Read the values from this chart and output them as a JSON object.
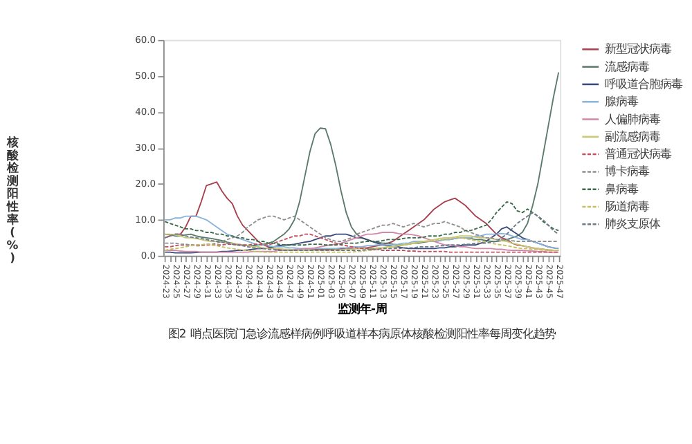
{
  "chart_data": {
    "type": "line",
    "xlabel": "监测年-周",
    "ylabel": "核酸检测阳性率(%)",
    "annotations": [
      "图2  哨点医院门急诊流感样病例呼吸道样本病原体核酸检测阳性率每周变化趋势"
    ],
    "ylim": [
      0,
      60
    ],
    "yticks": [
      {
        "value": 0,
        "label": "0.0"
      },
      {
        "value": 10,
        "label": "10.0"
      },
      {
        "value": 20,
        "label": "20.0"
      },
      {
        "value": 30,
        "label": "30.0"
      },
      {
        "value": 40,
        "label": "40.0"
      },
      {
        "value": 50,
        "label": "50.0"
      },
      {
        "value": 60,
        "label": "60.0"
      }
    ],
    "grid": false,
    "legend": "right",
    "categories": [
      "2024-23",
      null,
      "2024-25",
      null,
      "2024-27",
      null,
      "2024-29",
      null,
      "2024-31",
      null,
      "2024-33",
      null,
      "2024-35",
      null,
      "2024-37",
      null,
      "2024-39",
      null,
      "2024-41",
      null,
      "2024-43",
      null,
      "2024-45",
      null,
      "2024-47",
      null,
      "2024-49",
      null,
      "2024-51",
      null,
      "2025-01",
      null,
      "2025-03",
      null,
      "2025-05",
      null,
      "2025-07",
      null,
      "2025-09",
      null,
      "2025-11",
      null,
      "2025-13",
      null,
      "2025-15",
      null,
      "2025-17",
      null,
      "2025-19",
      null,
      "2025-21",
      null,
      "2025-23",
      null,
      "2025-25",
      null,
      "2025-27",
      null,
      "2025-29",
      null,
      "2025-31",
      null,
      "2025-33",
      null,
      "2025-35",
      null,
      "2025-37",
      null,
      "2025-39",
      null,
      "2025-41",
      null,
      "2025-43",
      null,
      "2025-45",
      null,
      "2025-47"
    ],
    "series": [
      {
        "name": "新型冠状病毒",
        "color": "#a8404e",
        "line_style": "solid",
        "values": [
          5,
          5.5,
          6,
          6,
          8,
          11,
          11,
          15,
          19.5,
          20,
          20.5,
          18,
          16,
          14.5,
          11,
          8.5,
          7,
          5.5,
          4,
          3,
          2.5,
          2,
          1.8,
          1.6,
          1.5,
          1.5,
          1.5,
          1.6,
          1.6,
          1.7,
          1.8,
          1.8,
          1.8,
          1.8,
          1.9,
          2,
          2,
          2,
          2.2,
          2.2,
          2.5,
          2.8,
          3,
          3.5,
          4,
          5,
          6,
          7,
          8,
          9,
          10,
          11.5,
          13,
          14,
          15,
          15.5,
          16,
          15,
          14,
          12.5,
          11,
          10,
          9,
          7.5,
          6,
          5,
          4.5,
          3.5,
          3,
          2.8,
          2.5,
          2.2,
          2,
          1.8,
          1.6,
          1.5,
          1.5
        ]
      },
      {
        "name": "流感病毒",
        "color": "#5a7a6a",
        "line_style": "solid",
        "values": [
          6,
          5.8,
          5.5,
          5.5,
          5.8,
          6,
          5.5,
          5.2,
          5,
          4.8,
          4.5,
          4.2,
          3.8,
          3.5,
          3.2,
          3,
          2.8,
          2.8,
          3,
          3.2,
          3.5,
          4,
          5,
          6,
          7.5,
          10,
          15,
          22,
          29,
          34,
          35.5,
          35.3,
          31,
          25,
          18,
          12,
          8,
          6,
          5,
          4.5,
          4,
          3.8,
          3.5,
          3.5,
          3.2,
          3,
          3,
          3.2,
          3.5,
          3.5,
          3.8,
          4,
          4,
          4.2,
          4.5,
          4.5,
          4.8,
          5,
          5,
          4.8,
          4.5,
          4.5,
          4.2,
          4,
          4,
          4.2,
          4.5,
          5,
          5.5,
          6.5,
          9,
          14,
          20,
          28,
          36,
          44,
          51
        ]
      },
      {
        "name": "呼吸道合胞病毒",
        "color": "#3a4a7a",
        "line_style": "solid",
        "values": [
          1,
          1,
          0.8,
          0.8,
          0.8,
          0.8,
          0.9,
          1,
          1,
          1,
          1,
          1.2,
          1.2,
          1.3,
          1.5,
          1.5,
          1.6,
          1.8,
          2,
          2,
          2.2,
          2.5,
          2.8,
          3,
          3,
          3.2,
          3.5,
          3.8,
          4,
          4.5,
          5,
          5.5,
          5.5,
          6,
          6,
          6,
          5.5,
          5,
          5,
          4.5,
          4,
          3.5,
          3,
          2.8,
          2.5,
          2.5,
          2.2,
          2,
          2,
          2,
          2,
          2,
          2,
          2.2,
          2.2,
          2.5,
          2.5,
          2.8,
          3,
          3,
          3,
          3.5,
          4,
          5,
          6,
          7.5,
          8,
          7,
          6,
          5,
          4.5,
          4,
          3.5,
          3,
          2.5,
          2.2,
          2
        ]
      },
      {
        "name": "腺病毒",
        "color": "#8ab4d8",
        "line_style": "solid",
        "values": [
          10,
          10,
          10.5,
          10.5,
          11,
          11,
          11,
          10.5,
          10,
          9,
          8,
          7,
          6,
          5.5,
          5,
          4.5,
          4,
          3.5,
          3,
          3,
          2.8,
          2.5,
          2.5,
          2.5,
          2.2,
          2.2,
          2,
          2,
          2,
          2,
          2,
          2,
          2,
          2,
          2.2,
          2.2,
          2.5,
          2.5,
          2.5,
          2.8,
          2.8,
          3,
          3,
          3,
          3,
          3.2,
          3.5,
          3.5,
          4,
          4,
          4,
          4,
          4,
          4.2,
          4.5,
          4.5,
          4.8,
          5,
          5,
          5,
          5.5,
          5.5,
          6,
          6,
          6,
          6.2,
          6,
          5.5,
          5,
          4.5,
          4.5,
          4,
          3.5,
          3,
          2.5,
          2.2,
          2
        ]
      },
      {
        "name": "人偏肺病毒",
        "color": "#d08aa8",
        "line_style": "solid",
        "values": [
          1.5,
          1.5,
          1.5,
          1.3,
          1.2,
          1.2,
          1.2,
          1,
          1,
          1,
          1,
          1,
          1,
          1,
          1,
          1,
          1,
          1.2,
          1.2,
          1.2,
          1.2,
          1.2,
          1.5,
          1.5,
          1.5,
          1.8,
          1.8,
          2,
          2,
          2.2,
          2.5,
          2.8,
          3,
          3.2,
          3.5,
          4,
          4.5,
          5,
          5.5,
          6,
          6,
          6.2,
          6.5,
          6.5,
          6.5,
          6.2,
          6,
          6,
          5.8,
          5.5,
          5,
          4.5,
          4,
          3.5,
          3,
          3,
          2.8,
          2.5,
          2.5,
          2.2,
          2,
          2,
          2,
          2,
          1.8,
          1.8,
          1.6,
          1.5,
          1.5,
          1.5,
          1.4,
          1.3,
          1.2,
          1.2,
          1,
          1,
          1
        ]
      },
      {
        "name": "副流感病毒",
        "color": "#c8c878",
        "line_style": "solid",
        "values": [
          6,
          6,
          5.8,
          5.5,
          5,
          5,
          4.8,
          4.5,
          4.2,
          4,
          4,
          3.8,
          3.5,
          3.5,
          3.2,
          3,
          2.8,
          2.5,
          2.5,
          2.2,
          2,
          2,
          2,
          1.8,
          1.8,
          1.5,
          1.5,
          1.5,
          1.5,
          1.5,
          1.5,
          1.5,
          1.5,
          1.6,
          1.6,
          1.8,
          1.8,
          2,
          2,
          2,
          2,
          2.2,
          2.2,
          2.5,
          2.5,
          2.8,
          3,
          3.2,
          3.5,
          3.8,
          4,
          4.2,
          4.5,
          4.8,
          5,
          5,
          5.2,
          5.5,
          5.5,
          5.5,
          5.2,
          5,
          5,
          4.8,
          4.5,
          4.2,
          4,
          3.5,
          3.2,
          2.8,
          2.5,
          2.2,
          2,
          1.8,
          1.6,
          1.5,
          1.5
        ]
      },
      {
        "name": "普通冠状病毒",
        "color": "#c05060",
        "line_style": "dashed",
        "values": [
          2.5,
          2.5,
          2.8,
          3,
          3,
          3,
          2.8,
          2.8,
          3,
          3,
          3,
          3,
          3.2,
          3.2,
          3,
          3,
          3,
          3.2,
          3.2,
          3,
          3,
          3.5,
          4,
          4.5,
          5,
          5.5,
          5.5,
          6,
          6,
          5.5,
          5,
          4.5,
          4,
          3.5,
          3,
          2.8,
          2.5,
          2.2,
          2,
          2,
          1.8,
          1.8,
          1.5,
          1.5,
          1.5,
          1.5,
          1.5,
          1.3,
          1.3,
          1.2,
          1.2,
          1.2,
          1.2,
          1.2,
          1.2,
          1,
          1,
          1,
          1,
          1,
          1,
          1,
          1,
          1,
          1,
          1,
          1,
          1,
          1,
          1,
          1,
          1,
          1,
          1,
          1,
          1,
          1
        ]
      },
      {
        "name": "博卡病毒",
        "color": "#909090",
        "line_style": "dashed",
        "values": [
          3.5,
          3.5,
          3.5,
          3.2,
          3.2,
          3,
          3,
          3,
          3.2,
          3.2,
          3.5,
          4,
          4.5,
          5,
          5.5,
          6.5,
          8,
          9,
          10,
          10.5,
          11,
          11,
          10.5,
          10,
          10.5,
          11,
          10,
          9,
          8,
          7,
          6,
          5,
          4.5,
          4,
          4,
          4.5,
          5,
          6,
          6.5,
          7,
          7.5,
          8,
          8.5,
          8.5,
          9,
          8.5,
          8,
          8.5,
          9,
          8.5,
          8,
          8.5,
          9,
          9,
          9.5,
          9,
          8.5,
          8,
          7,
          6.5,
          6,
          5.5,
          5,
          5,
          4.5,
          4.5,
          4.5,
          4.2,
          4,
          4,
          4,
          4,
          4,
          4,
          4,
          4,
          4
        ]
      },
      {
        "name": "鼻病毒",
        "color": "#3a6a4a",
        "line_style": "dashed",
        "values": [
          9.5,
          9,
          8.5,
          8,
          7.5,
          7.5,
          7,
          7,
          6.5,
          6.5,
          6,
          6,
          5.5,
          5.5,
          5,
          5,
          4.5,
          4.5,
          4,
          4,
          3.5,
          3.5,
          3.2,
          3,
          3,
          3,
          3,
          3,
          3.2,
          3.2,
          3.2,
          3,
          3,
          3,
          3.2,
          3.5,
          3.5,
          3.5,
          3.8,
          4,
          4,
          4,
          4.2,
          4.5,
          4.5,
          4.5,
          4.8,
          5,
          5,
          5,
          5.2,
          5.5,
          5.5,
          5.5,
          6,
          6,
          6.5,
          6.5,
          7,
          7,
          7.5,
          8,
          8.5,
          10,
          12,
          13.5,
          15,
          14.5,
          12.5,
          12,
          13,
          12,
          11,
          9.5,
          8.5,
          7.5,
          7
        ]
      },
      {
        "name": "肠道病毒",
        "color": "#c8c060",
        "line_style": "dashed",
        "values": [
          1.5,
          1.8,
          2,
          2.2,
          2.5,
          2.8,
          3,
          3,
          3.2,
          3,
          2.8,
          2.5,
          2.2,
          2,
          1.8,
          1.5,
          1.5,
          1.2,
          1.2,
          1,
          1,
          1,
          1,
          1,
          1,
          1,
          1,
          1,
          1,
          1,
          1,
          1,
          1,
          1,
          1,
          1,
          1,
          1.2,
          1.2,
          1.5,
          1.5,
          1.8,
          2,
          2.2,
          2.5,
          2.8,
          3,
          3.2,
          3.5,
          3.8,
          4,
          4,
          4.2,
          4.5,
          4.5,
          4.8,
          5,
          5,
          4.8,
          4.5,
          4.2,
          4,
          3.8,
          3.5,
          3.2,
          3,
          2.8,
          2.5,
          2.2,
          2,
          2,
          1.8,
          1.8,
          1.5,
          1.5,
          1.5,
          1.5
        ]
      },
      {
        "name": "肺炎支原体",
        "color": "#6a7a8a",
        "line_style": "dashed",
        "values": [
          5,
          5.5,
          6,
          6,
          5.5,
          5.2,
          5,
          4.8,
          4.5,
          4.2,
          4,
          3.8,
          3.5,
          3.2,
          3,
          2.8,
          2.5,
          2.2,
          2,
          2,
          1.8,
          1.8,
          1.5,
          1.5,
          1.5,
          1.5,
          1.5,
          1.5,
          1.5,
          1.5,
          1.5,
          1.5,
          1.5,
          1.5,
          1.5,
          1.5,
          1.5,
          1.5,
          1.5,
          1.8,
          1.8,
          1.8,
          2,
          2,
          2,
          2,
          2.2,
          2.2,
          2.2,
          2.5,
          2.5,
          2.5,
          2.5,
          2.8,
          2.8,
          3,
          3,
          3,
          3.2,
          3.2,
          3.5,
          3.5,
          3.5,
          3.8,
          4,
          5,
          6,
          7.5,
          9,
          10,
          11,
          12,
          11,
          10,
          8.5,
          7,
          6
        ]
      }
    ]
  }
}
